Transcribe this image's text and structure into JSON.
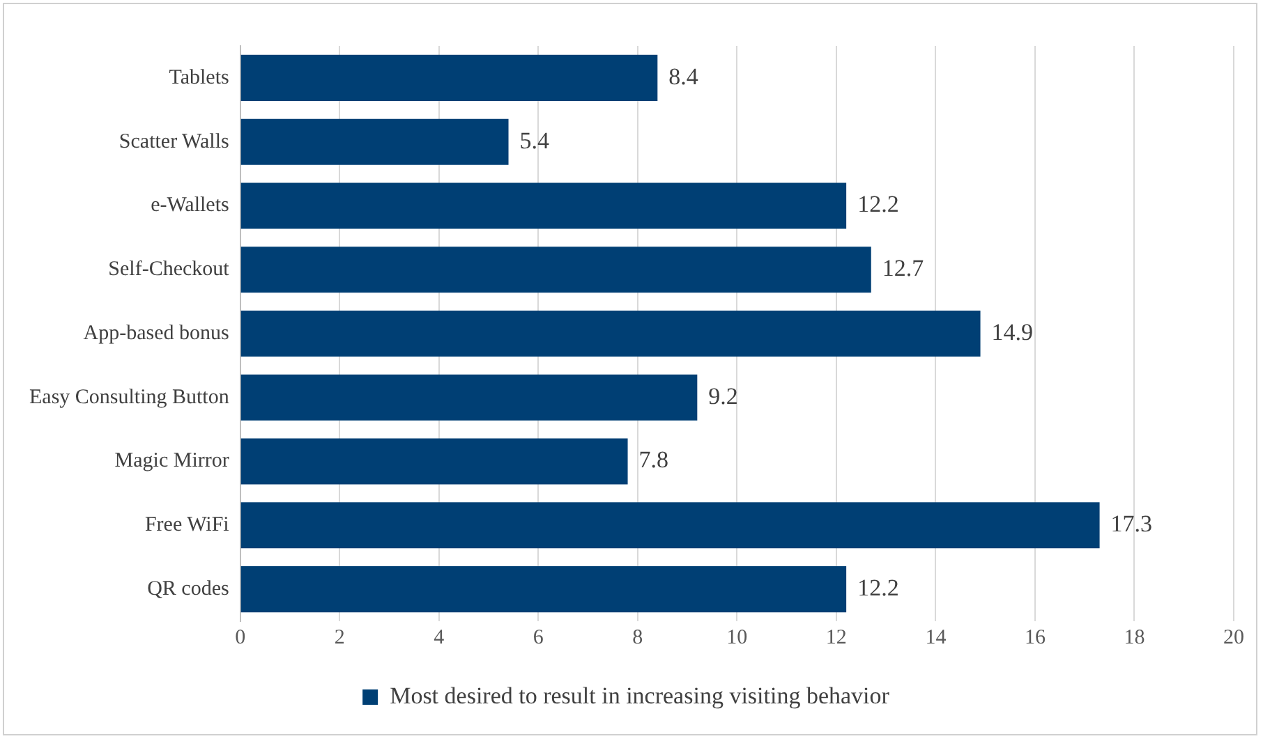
{
  "chart_data": {
    "type": "bar",
    "orientation": "horizontal",
    "categories": [
      "Tablets",
      "Scatter Walls",
      "e-Wallets",
      "Self-Checkout",
      "App-based bonus",
      "Easy Consulting Button",
      "Magic Mirror",
      "Free WiFi",
      "QR codes"
    ],
    "series": [
      {
        "name": "Most desired to result in increasing visiting behavior",
        "color": "#003f74",
        "values": [
          8.4,
          5.4,
          12.2,
          12.7,
          14.9,
          9.2,
          7.8,
          17.3,
          12.2
        ]
      }
    ],
    "xlim": [
      0,
      20
    ],
    "xticks": [
      0,
      2,
      4,
      6,
      8,
      10,
      12,
      14,
      16,
      18,
      20
    ],
    "grid": "x",
    "legend": "bottom",
    "data_labels": true
  }
}
